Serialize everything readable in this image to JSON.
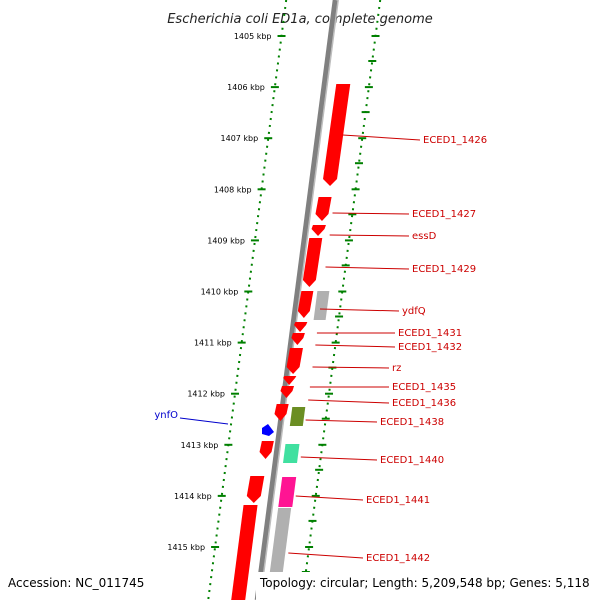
{
  "title": "Escherichia coli ED1a, complete genome",
  "accession": "Accession: NC_011745",
  "topology": "Topology: circular; Length: 5,209,548 bp; Genes: 5,118",
  "colors": {
    "backbone": "#808080",
    "ruler": "#008000",
    "forward_label": "#cc0000",
    "reverse_label": "#0000cc",
    "gene_red": "#ff0000",
    "gene_olive": "#6b8e23",
    "gene_teal": "#40e0a0",
    "gene_pink": "#ff1493",
    "gene_grey": "#b0b0b0"
  },
  "ticks": [
    {
      "label": "1405 kbp"
    },
    {
      "label": "1406 kbp"
    },
    {
      "label": "1407 kbp"
    },
    {
      "label": "1408 kbp"
    },
    {
      "label": "1409 kbp"
    },
    {
      "label": "1410 kbp"
    },
    {
      "label": "1411 kbp"
    },
    {
      "label": "1412 kbp"
    },
    {
      "label": "1413 kbp"
    },
    {
      "label": "1414 kbp"
    },
    {
      "label": "1415 kbp"
    }
  ],
  "gene_labels": [
    {
      "text": "ECED1_1426",
      "strand": "forward"
    },
    {
      "text": "ECED1_1427",
      "strand": "forward"
    },
    {
      "text": "essD",
      "strand": "forward"
    },
    {
      "text": "ECED1_1429",
      "strand": "forward"
    },
    {
      "text": "ydfQ",
      "strand": "forward"
    },
    {
      "text": "ECED1_1431",
      "strand": "forward"
    },
    {
      "text": "ECED1_1432",
      "strand": "forward"
    },
    {
      "text": "rz",
      "strand": "forward"
    },
    {
      "text": "ECED1_1435",
      "strand": "forward"
    },
    {
      "text": "ECED1_1436",
      "strand": "forward"
    },
    {
      "text": "ECED1_1438",
      "strand": "forward"
    },
    {
      "text": "ECED1_1440",
      "strand": "forward"
    },
    {
      "text": "ECED1_1441",
      "strand": "forward"
    },
    {
      "text": "ECED1_1442",
      "strand": "forward"
    },
    {
      "text": "ynfO",
      "strand": "reverse"
    }
  ]
}
